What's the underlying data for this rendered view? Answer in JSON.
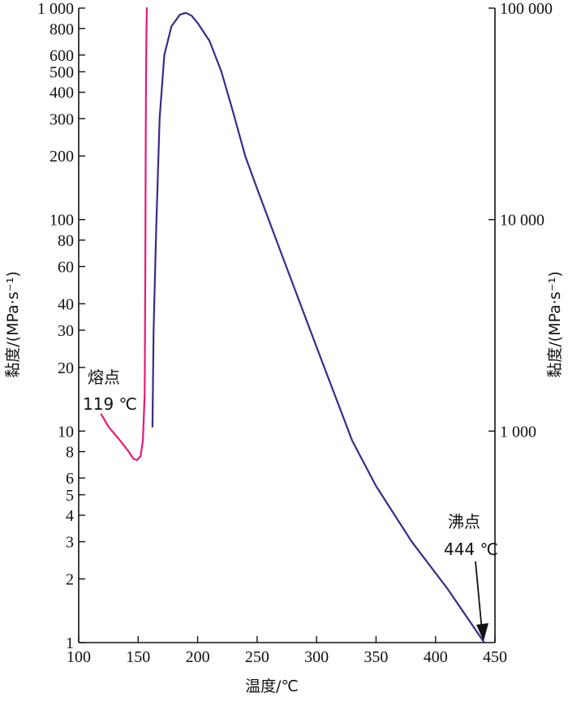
{
  "chart_data": {
    "type": "line",
    "title": "",
    "xlabel": "温度/℃",
    "ylabel_left": "黏度/(MPa·s⁻¹)",
    "ylabel_right": "黏度/(MPa·s⁻¹)",
    "xlim": [
      100,
      450
    ],
    "ylim_left": [
      1,
      1000
    ],
    "ylim_right": [
      100,
      100000
    ],
    "log_scale_y": true,
    "grid": false,
    "x_ticks": [
      "100",
      "150",
      "200",
      "250",
      "300",
      "350",
      "400",
      "450"
    ],
    "y_left_ticks": [
      "1",
      "2",
      "3",
      "4",
      "5",
      "6",
      "8",
      "10",
      "20",
      "30",
      "40",
      "60",
      "80",
      "100",
      "200",
      "300",
      "400",
      "500",
      "600",
      "800",
      "1 000"
    ],
    "y_left_values": [
      1,
      2,
      3,
      4,
      5,
      6,
      8,
      10,
      20,
      30,
      40,
      60,
      80,
      100,
      200,
      300,
      400,
      500,
      600,
      800,
      1000
    ],
    "y_right_ticks": [
      "1 000",
      "10 000",
      "100 000"
    ],
    "y_right_values": [
      1000,
      10000,
      100000
    ],
    "series": [
      {
        "axis": "left",
        "color": "#e8177a",
        "x": [
          119,
          125,
          135,
          142,
          146,
          149,
          152,
          154,
          155.5,
          156,
          156.3,
          156.6,
          157,
          157.3
        ],
        "y": [
          12,
          10.5,
          9,
          8,
          7.4,
          7.3,
          7.6,
          9,
          15,
          60,
          200,
          500,
          800,
          1000
        ]
      },
      {
        "axis": "right",
        "color": "#3a2a8a",
        "x": [
          162,
          163,
          165,
          168,
          172,
          178,
          185,
          190,
          195,
          200,
          210,
          220,
          230,
          240,
          250,
          270,
          300,
          330,
          350,
          380,
          410,
          441
        ],
        "y": [
          1050,
          3000,
          8500,
          30000,
          60000,
          82000,
          93000,
          95000,
          92000,
          85000,
          70000,
          50000,
          32000,
          20000,
          14000,
          7000,
          2500,
          900,
          550,
          300,
          180,
          100
        ]
      }
    ],
    "annotations": [
      {
        "lines": [
          "熔点",
          "119 ℃"
        ]
      },
      {
        "lines": [
          "沸点",
          "444 ℃"
        ]
      }
    ]
  }
}
